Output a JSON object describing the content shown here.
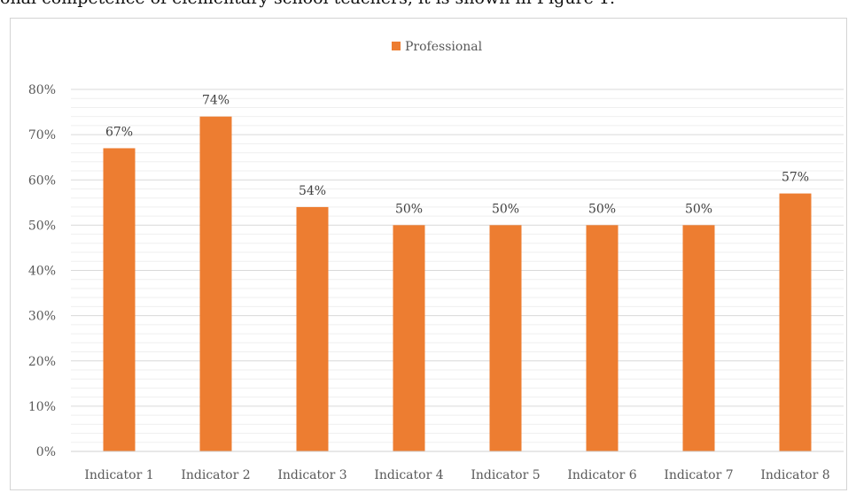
{
  "page": {
    "top_text": "onal competence of elementary school teachers, it is shown in Figure 1."
  },
  "chart_data": {
    "type": "bar",
    "categories": [
      "Indicator 1",
      "Indicator 2",
      "Indicator 3",
      "Indicator 4",
      "Indicator 5",
      "Indicator 6",
      "Indicator 7",
      "Indicator 8"
    ],
    "series": [
      {
        "name": "Professional",
        "values": [
          67,
          74,
          54,
          50,
          50,
          50,
          50,
          57
        ],
        "color": "#ED7D31"
      }
    ],
    "data_labels": [
      "67%",
      "74%",
      "54%",
      "50%",
      "50%",
      "50%",
      "50%",
      "57%"
    ],
    "yticks": [
      "0%",
      "10%",
      "20%",
      "30%",
      "40%",
      "50%",
      "60%",
      "70%",
      "80%"
    ],
    "ylim": [
      0,
      80
    ],
    "title": "",
    "xlabel": "",
    "ylabel": "",
    "grid": true,
    "legend": "top-center"
  }
}
